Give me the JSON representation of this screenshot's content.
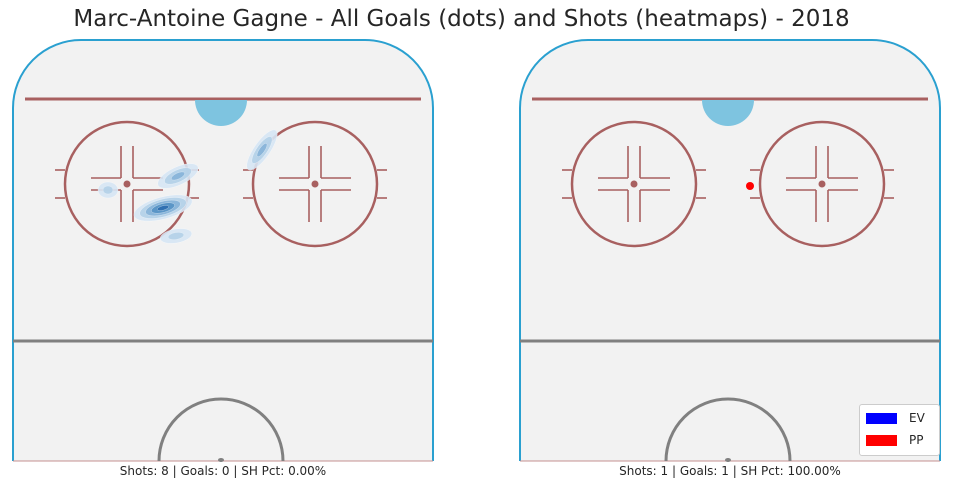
{
  "chart_data": {
    "type": "heatmap",
    "title": "Marc-Antoine Gagne - All Goals (dots) and Shots (heatmaps) - 2018",
    "panels": [
      {
        "name": "left",
        "caption": "Shots: 8 | Goals: 0 | SH Pct: 0.00%",
        "shot_density": [
          {
            "strength": "EV",
            "x": 163,
            "y": 208,
            "rx": 30,
            "ry": 11,
            "angle": -15,
            "levels": 5
          },
          {
            "strength": "EV",
            "x": 178,
            "y": 176,
            "rx": 22,
            "ry": 9,
            "angle": -25,
            "levels": 3
          },
          {
            "strength": "EV",
            "x": 262,
            "y": 150,
            "rx": 24,
            "ry": 8,
            "angle": -55,
            "levels": 3
          },
          {
            "strength": "EV",
            "x": 108,
            "y": 190,
            "rx": 10,
            "ry": 8,
            "angle": 0,
            "levels": 2
          },
          {
            "strength": "EV",
            "x": 176,
            "y": 236,
            "rx": 16,
            "ry": 7,
            "angle": -10,
            "levels": 2
          }
        ],
        "goals": []
      },
      {
        "name": "right",
        "caption": "Shots: 1 | Goals: 1 | SH Pct: 100.00%",
        "shot_density": [],
        "goals": [
          {
            "strength": "PP",
            "x": 750,
            "y": 186
          }
        ]
      }
    ],
    "legend": {
      "placement": "bottom-right",
      "entries": [
        {
          "label": "EV",
          "color": "#0000ff"
        },
        {
          "label": "PP",
          "color": "#ff0000"
        }
      ]
    },
    "colors": {
      "rink_fill": "#f2f2f2",
      "boards": "#2aa0d0",
      "goal_line": "#a86060",
      "faceoff": "#a86060",
      "crease": "#7ec4e0",
      "blue_line": "#808080",
      "center_circle": "#808080",
      "heat_scale": [
        "#d6e6f4",
        "#b3d0e8",
        "#86b3d8",
        "#5592c4",
        "#2b6cae",
        "#10437a"
      ]
    }
  }
}
